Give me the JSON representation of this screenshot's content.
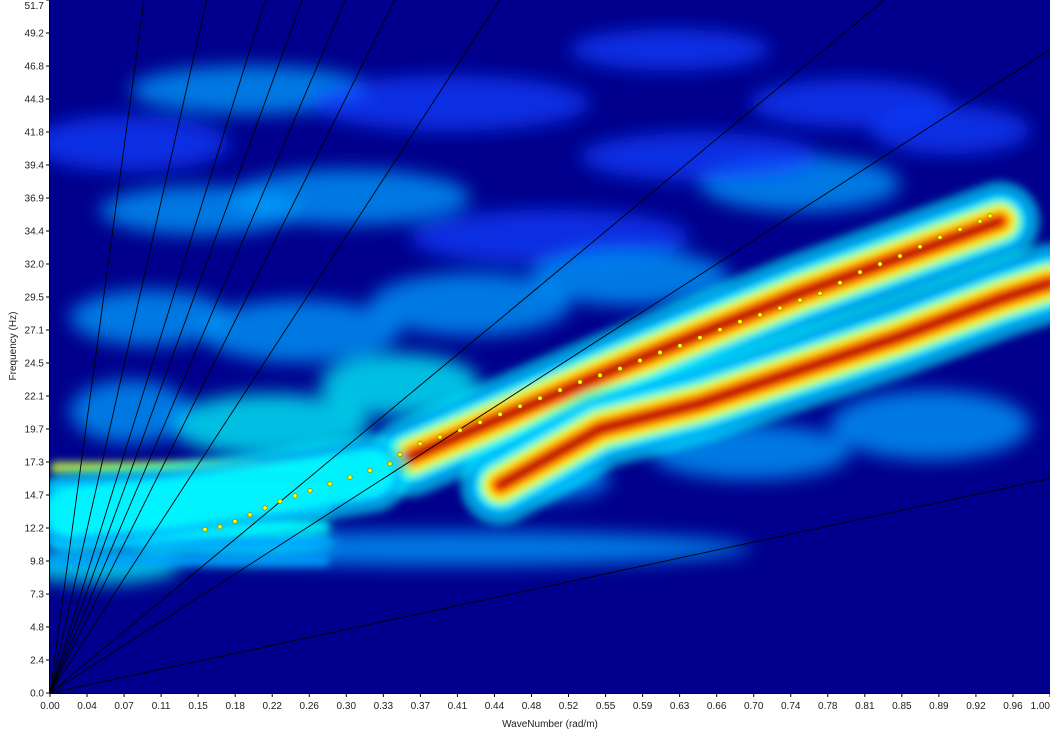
{
  "chart_data": {
    "type": "heatmap",
    "title": "",
    "xlabel": "WaveNumber (rad/m)",
    "ylabel": "Frequency (Hz)",
    "xlim": [
      0.0,
      1.0
    ],
    "ylim": [
      0.0,
      51.7
    ],
    "x_tick_labels": [
      "0.00",
      "0.04",
      "0.07",
      "0.11",
      "0.15",
      "0.18",
      "0.22",
      "0.26",
      "0.30",
      "0.33",
      "0.37",
      "0.41",
      "0.44",
      "0.48",
      "0.52",
      "0.55",
      "0.59",
      "0.63",
      "0.66",
      "0.70",
      "0.74",
      "0.78",
      "0.81",
      "0.85",
      "0.89",
      "0.92",
      "0.96",
      "1.00"
    ],
    "y_tick_labels": [
      "0.0",
      "2.4",
      "4.8",
      "7.3",
      "9.8",
      "12.2",
      "14.7",
      "17.3",
      "19.7",
      "22.1",
      "24.5",
      "27.1",
      "29.5",
      "32.0",
      "34.4",
      "36.9",
      "39.4",
      "41.8",
      "44.3",
      "46.8",
      "49.2",
      "51.7"
    ],
    "colormap": [
      "#00006e",
      "#0000c8",
      "#0a3cff",
      "#00a0ff",
      "#00ffff",
      "#c8ff3c",
      "#ffff00",
      "#ff9600",
      "#ff1e00",
      "#a00000"
    ],
    "colors": {
      "background": "#00008c",
      "guide_line": "#000000",
      "picked_marker_fill": "#ffff00",
      "picked_marker_edge": "#8a7400"
    },
    "energy_ridges": [
      {
        "name": "fundamental",
        "points": [
          [
            0.36,
            17.6
          ],
          [
            0.45,
            20.5
          ],
          [
            0.55,
            23.7
          ],
          [
            0.65,
            26.8
          ],
          [
            0.75,
            29.8
          ],
          [
            0.85,
            32.5
          ],
          [
            0.95,
            35.2
          ]
        ],
        "amplitude": 1.0
      },
      {
        "name": "second",
        "points": [
          [
            0.45,
            15.5
          ],
          [
            0.55,
            19.7
          ],
          [
            0.65,
            21.6
          ],
          [
            0.75,
            24.1
          ],
          [
            0.85,
            26.6
          ],
          [
            0.95,
            29.4
          ],
          [
            1.0,
            30.6
          ]
        ],
        "amplitude": 1.0
      },
      {
        "name": "low-k-banding",
        "points": [
          [
            0.02,
            13.5
          ],
          [
            0.12,
            14.2
          ],
          [
            0.22,
            15.2
          ],
          [
            0.32,
            16.4
          ]
        ],
        "amplitude": 0.55
      }
    ],
    "velocity_lines_slopes": [
      550,
      330,
      240,
      205,
      175,
      150,
      115,
      62,
      48,
      16
    ],
    "picked_curve": {
      "x": [
        0.155,
        0.17,
        0.185,
        0.2,
        0.215,
        0.23,
        0.245,
        0.26,
        0.28,
        0.3,
        0.32,
        0.34,
        0.35,
        0.37,
        0.39,
        0.41,
        0.43,
        0.45,
        0.47,
        0.49,
        0.51,
        0.53,
        0.55,
        0.57,
        0.59,
        0.61,
        0.63,
        0.65,
        0.67,
        0.69,
        0.71,
        0.73,
        0.75,
        0.77,
        0.79,
        0.81,
        0.83,
        0.85,
        0.87,
        0.89,
        0.91,
        0.93,
        0.94
      ],
      "y": [
        12.2,
        12.4,
        12.8,
        13.3,
        13.8,
        14.3,
        14.7,
        15.1,
        15.6,
        16.1,
        16.6,
        17.1,
        17.8,
        18.6,
        19.1,
        19.6,
        20.2,
        20.8,
        21.4,
        22.0,
        22.6,
        23.2,
        23.7,
        24.2,
        24.8,
        25.4,
        25.9,
        26.5,
        27.1,
        27.7,
        28.2,
        28.7,
        29.3,
        29.8,
        30.6,
        31.4,
        32.0,
        32.6,
        33.3,
        34.0,
        34.6,
        35.2,
        35.6
      ]
    }
  }
}
